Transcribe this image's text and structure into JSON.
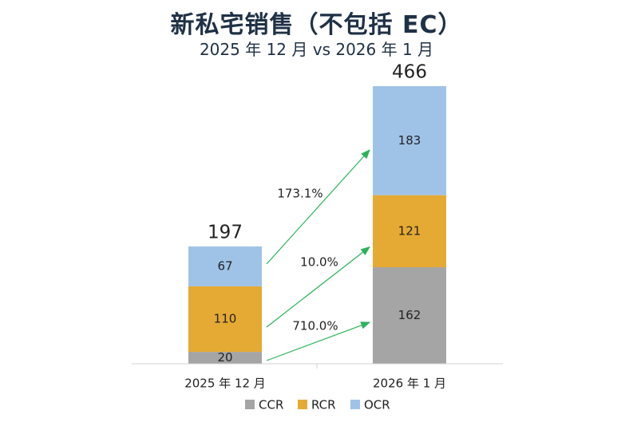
{
  "chart_data": {
    "type": "bar",
    "stacked": true,
    "title": "新私宅销售（不包括 EC）",
    "subtitle": "2025 年 12 月 vs 2026 年 1 月",
    "categories": [
      "2025 年 12 月",
      "2026 年 1 月"
    ],
    "series": [
      {
        "name": "CCR",
        "values": [
          20,
          162
        ],
        "color": "#a5a5a5"
      },
      {
        "name": "RCR",
        "values": [
          110,
          121
        ],
        "color": "#e5aa33"
      },
      {
        "name": "OCR",
        "values": [
          67,
          183
        ],
        "color": "#9fc3e7"
      }
    ],
    "totals": [
      197,
      466
    ],
    "growth_labels": [
      "710.0%",
      "10.0%",
      "173.1%"
    ],
    "arrow_color": "#2bb35a",
    "ylim": [
      0,
      466
    ],
    "legend_position": "bottom",
    "grid": false
  }
}
